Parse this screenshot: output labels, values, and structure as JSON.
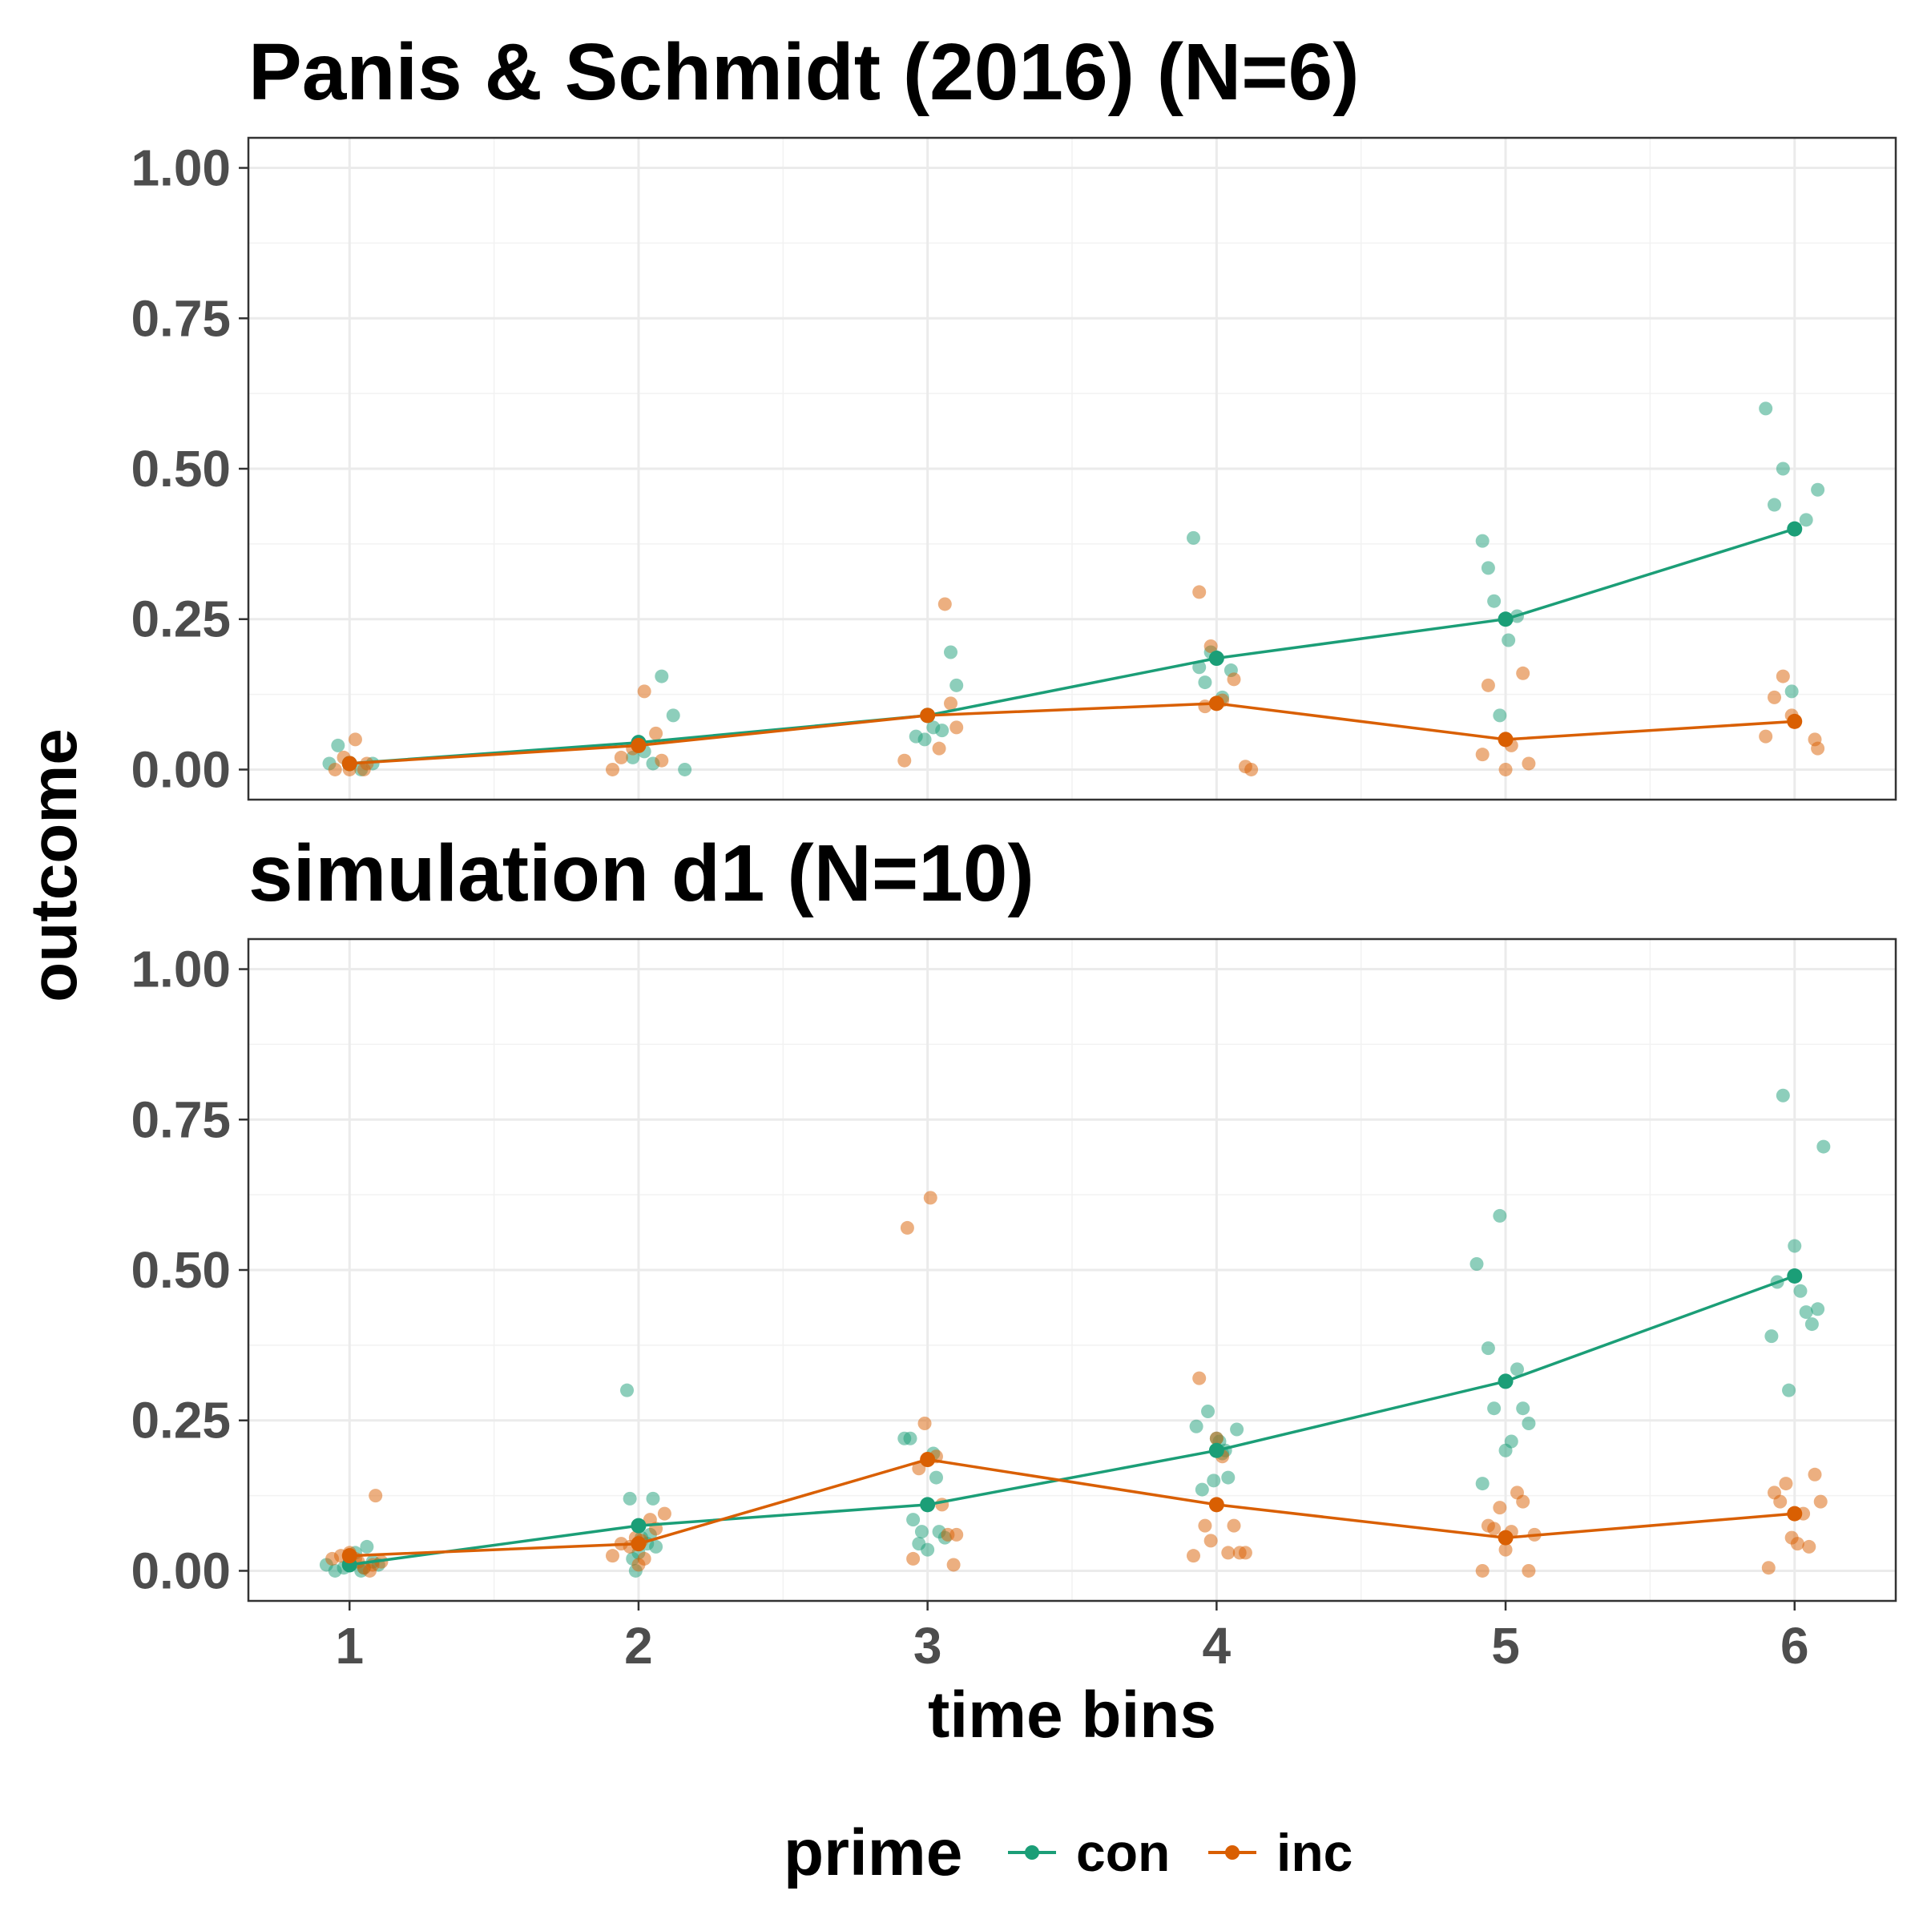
{
  "chart_data": {
    "type": "scatter",
    "shared": {
      "xlabel": "time bins",
      "ylabel": "outcome",
      "x_ticks": [
        1,
        2,
        3,
        4,
        5,
        6
      ],
      "y_ticks": [
        "0.00",
        "0.25",
        "0.50",
        "0.75",
        "1.00"
      ],
      "xlim": [
        0.65,
        6.35
      ],
      "ylim": [
        -0.05,
        1.05
      ],
      "grid": true,
      "legend_position": "bottom",
      "legend_title": "prime",
      "colors": {
        "con": "#1b9e77",
        "inc": "#d95f02"
      }
    },
    "legend": [
      {
        "key": "con",
        "label": "con"
      },
      {
        "key": "inc",
        "label": "inc"
      }
    ],
    "panels": [
      {
        "title": "Panis & Schmidt (2016) (N=6)",
        "series": [
          {
            "name": "con",
            "mean": [
              [
                1.0,
                0.01
              ],
              [
                2.0,
                0.045
              ],
              [
                3.0,
                0.09
              ],
              [
                4.0,
                0.185
              ],
              [
                5.0,
                0.25
              ],
              [
                6.0,
                0.4
              ]
            ],
            "points": [
              [
                0.93,
                0.01
              ],
              [
                0.96,
                0.04
              ],
              [
                1.04,
                0.0
              ],
              [
                1.08,
                0.01
              ],
              [
                1.98,
                0.02
              ],
              [
                2.02,
                0.03
              ],
              [
                2.08,
                0.155
              ],
              [
                2.12,
                0.09
              ],
              [
                2.16,
                0.0
              ],
              [
                2.05,
                0.01
              ],
              [
                2.96,
                0.055
              ],
              [
                2.99,
                0.05
              ],
              [
                3.02,
                0.07
              ],
              [
                3.08,
                0.195
              ],
              [
                3.1,
                0.14
              ],
              [
                3.05,
                0.065
              ],
              [
                3.92,
                0.385
              ],
              [
                3.94,
                0.17
              ],
              [
                3.96,
                0.145
              ],
              [
                3.98,
                0.195
              ],
              [
                4.02,
                0.12
              ],
              [
                4.05,
                0.165
              ],
              [
                4.92,
                0.38
              ],
              [
                4.94,
                0.335
              ],
              [
                4.96,
                0.28
              ],
              [
                4.98,
                0.09
              ],
              [
                5.01,
                0.215
              ],
              [
                5.04,
                0.255
              ],
              [
                5.9,
                0.6
              ],
              [
                5.93,
                0.44
              ],
              [
                5.96,
                0.5
              ],
              [
                5.99,
                0.13
              ],
              [
                6.04,
                0.415
              ],
              [
                6.08,
                0.465
              ]
            ]
          },
          {
            "name": "inc",
            "mean": [
              [
                1.0,
                0.01
              ],
              [
                2.0,
                0.04
              ],
              [
                3.0,
                0.09
              ],
              [
                4.0,
                0.11
              ],
              [
                5.0,
                0.05
              ],
              [
                6.0,
                0.08
              ]
            ],
            "points": [
              [
                0.95,
                0.0
              ],
              [
                0.98,
                0.02
              ],
              [
                1.0,
                0.0
              ],
              [
                1.02,
                0.05
              ],
              [
                1.05,
                0.0
              ],
              [
                1.06,
                0.01
              ],
              [
                1.91,
                0.0
              ],
              [
                1.94,
                0.02
              ],
              [
                1.98,
                0.035
              ],
              [
                2.02,
                0.13
              ],
              [
                2.06,
                0.06
              ],
              [
                2.08,
                0.015
              ],
              [
                2.92,
                0.015
              ],
              [
                3.04,
                0.035
              ],
              [
                3.06,
                0.275
              ],
              [
                3.08,
                0.11
              ],
              [
                3.1,
                0.07
              ],
              [
                3.94,
                0.295
              ],
              [
                3.96,
                0.105
              ],
              [
                3.98,
                0.205
              ],
              [
                4.02,
                0.115
              ],
              [
                4.06,
                0.15
              ],
              [
                4.1,
                0.005
              ],
              [
                4.12,
                0.0
              ],
              [
                4.92,
                0.025
              ],
              [
                4.94,
                0.14
              ],
              [
                5.0,
                0.0
              ],
              [
                5.02,
                0.04
              ],
              [
                5.06,
                0.16
              ],
              [
                5.08,
                0.01
              ],
              [
                5.9,
                0.055
              ],
              [
                5.93,
                0.12
              ],
              [
                5.96,
                0.155
              ],
              [
                5.99,
                0.09
              ],
              [
                6.07,
                0.05
              ],
              [
                6.08,
                0.035
              ]
            ]
          }
        ]
      },
      {
        "title": "simulation d1 (N=10)",
        "series": [
          {
            "name": "con",
            "mean": [
              [
                1.0,
                0.01
              ],
              [
                2.0,
                0.075
              ],
              [
                3.0,
                0.11
              ],
              [
                4.0,
                0.2
              ],
              [
                5.0,
                0.315
              ],
              [
                6.0,
                0.49
              ]
            ],
            "points": [
              [
                0.92,
                0.01
              ],
              [
                0.95,
                0.0
              ],
              [
                0.98,
                0.005
              ],
              [
                1.02,
                0.03
              ],
              [
                1.04,
                0.0
              ],
              [
                1.06,
                0.04
              ],
              [
                1.08,
                0.015
              ],
              [
                1.1,
                0.01
              ],
              [
                1.0,
                0.02
              ],
              [
                1.05,
                0.005
              ],
              [
                1.96,
                0.3
              ],
              [
                1.97,
                0.12
              ],
              [
                1.98,
                0.02
              ],
              [
                1.99,
                0.0
              ],
              [
                2.01,
                0.055
              ],
              [
                2.03,
                0.045
              ],
              [
                2.05,
                0.12
              ],
              [
                2.06,
                0.04
              ],
              [
                2.0,
                0.03
              ],
              [
                2.04,
                0.06
              ],
              [
                2.92,
                0.22
              ],
              [
                2.94,
                0.22
              ],
              [
                2.95,
                0.085
              ],
              [
                2.97,
                0.045
              ],
              [
                2.98,
                0.065
              ],
              [
                3.0,
                0.035
              ],
              [
                3.02,
                0.195
              ],
              [
                3.03,
                0.155
              ],
              [
                3.04,
                0.065
              ],
              [
                3.06,
                0.055
              ],
              [
                3.93,
                0.24
              ],
              [
                3.95,
                0.135
              ],
              [
                3.97,
                0.265
              ],
              [
                3.99,
                0.15
              ],
              [
                4.01,
                0.215
              ],
              [
                4.03,
                0.2
              ],
              [
                4.04,
                0.155
              ],
              [
                4.07,
                0.235
              ],
              [
                4.0,
                0.22
              ],
              [
                4.02,
                0.195
              ],
              [
                4.9,
                0.51
              ],
              [
                4.92,
                0.145
              ],
              [
                4.94,
                0.37
              ],
              [
                4.96,
                0.27
              ],
              [
                4.98,
                0.59
              ],
              [
                5.0,
                0.2
              ],
              [
                5.02,
                0.215
              ],
              [
                5.04,
                0.335
              ],
              [
                5.06,
                0.27
              ],
              [
                5.08,
                0.245
              ],
              [
                5.92,
                0.39
              ],
              [
                5.94,
                0.48
              ],
              [
                5.96,
                0.79
              ],
              [
                5.98,
                0.3
              ],
              [
                6.0,
                0.54
              ],
              [
                6.02,
                0.465
              ],
              [
                6.04,
                0.43
              ],
              [
                6.06,
                0.41
              ],
              [
                6.08,
                0.435
              ],
              [
                6.1,
                0.705
              ]
            ]
          },
          {
            "name": "inc",
            "mean": [
              [
                1.0,
                0.025
              ],
              [
                2.0,
                0.045
              ],
              [
                3.0,
                0.185
              ],
              [
                4.0,
                0.11
              ],
              [
                5.0,
                0.055
              ],
              [
                6.0,
                0.095
              ]
            ],
            "points": [
              [
                0.94,
                0.02
              ],
              [
                0.97,
                0.025
              ],
              [
                1.0,
                0.03
              ],
              [
                1.03,
                0.015
              ],
              [
                1.05,
                0.005
              ],
              [
                1.07,
                0.0
              ],
              [
                1.09,
                0.125
              ],
              [
                1.11,
                0.015
              ],
              [
                1.02,
                0.02
              ],
              [
                1.08,
                0.01
              ],
              [
                1.91,
                0.025
              ],
              [
                1.94,
                0.045
              ],
              [
                1.97,
                0.04
              ],
              [
                2.0,
                0.01
              ],
              [
                2.02,
                0.02
              ],
              [
                2.04,
                0.085
              ],
              [
                2.06,
                0.07
              ],
              [
                2.09,
                0.095
              ],
              [
                1.99,
                0.055
              ],
              [
                2.01,
                0.05
              ],
              [
                2.93,
                0.57
              ],
              [
                2.95,
                0.02
              ],
              [
                2.97,
                0.17
              ],
              [
                2.99,
                0.245
              ],
              [
                3.01,
                0.62
              ],
              [
                3.03,
                0.19
              ],
              [
                3.05,
                0.11
              ],
              [
                3.07,
                0.06
              ],
              [
                3.09,
                0.01
              ],
              [
                3.1,
                0.06
              ],
              [
                3.92,
                0.025
              ],
              [
                3.94,
                0.32
              ],
              [
                3.96,
                0.075
              ],
              [
                3.98,
                0.05
              ],
              [
                4.0,
                0.22
              ],
              [
                4.02,
                0.19
              ],
              [
                4.04,
                0.03
              ],
              [
                4.06,
                0.075
              ],
              [
                4.08,
                0.03
              ],
              [
                4.1,
                0.03
              ],
              [
                4.92,
                0.0
              ],
              [
                4.94,
                0.075
              ],
              [
                4.96,
                0.07
              ],
              [
                4.98,
                0.105
              ],
              [
                5.0,
                0.035
              ],
              [
                5.02,
                0.065
              ],
              [
                5.04,
                0.13
              ],
              [
                5.06,
                0.115
              ],
              [
                5.08,
                0.0
              ],
              [
                5.1,
                0.06
              ],
              [
                5.91,
                0.005
              ],
              [
                5.93,
                0.13
              ],
              [
                5.95,
                0.115
              ],
              [
                5.97,
                0.145
              ],
              [
                5.99,
                0.055
              ],
              [
                6.01,
                0.045
              ],
              [
                6.03,
                0.095
              ],
              [
                6.05,
                0.04
              ],
              [
                6.07,
                0.16
              ],
              [
                6.09,
                0.115
              ]
            ]
          }
        ]
      }
    ]
  }
}
